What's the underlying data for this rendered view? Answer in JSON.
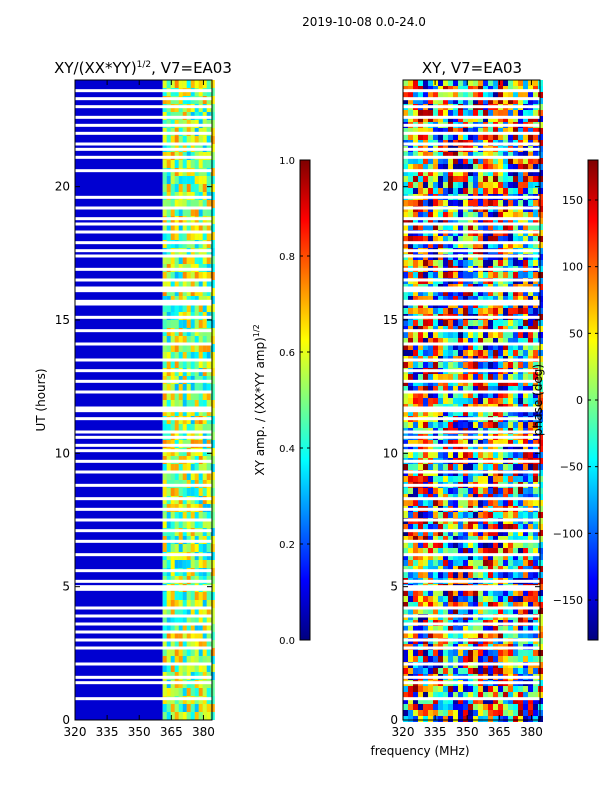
{
  "figure": {
    "suptitle": "2019-10-08 0.0-24.0",
    "shared_xlabel": "frequency (MHz)",
    "jet_stops": [
      "#00007f",
      "#0000ff",
      "#007fff",
      "#00ffff",
      "#7fff7f",
      "#ffff00",
      "#ff7f00",
      "#ff0000",
      "#7f0000"
    ],
    "row_gaps_ut": [
      0.8,
      1.4,
      1.6,
      2.1,
      2.7,
      3.0,
      3.3,
      3.6,
      3.9,
      4.2,
      4.9,
      5.0,
      5.2,
      5.6,
      6.2,
      6.7,
      7.1,
      7.5,
      7.9,
      8.3,
      8.8,
      9.3,
      9.7,
      10.1,
      10.3,
      10.6,
      10.8,
      11.3,
      11.6,
      11.7,
      12.3,
      12.7,
      13.1,
      13.5,
      14.1,
      14.6,
      15.1,
      15.6,
      15.7,
      16.1,
      16.2,
      16.5,
      16.9,
      17.4,
      17.6,
      17.9,
      18.3,
      18.6,
      18.8,
      19.2,
      19.6,
      20.6,
      21.1,
      21.4,
      21.6,
      22.0,
      22.3,
      22.6,
      23.0,
      23.3,
      23.6
    ]
  },
  "chart_data": [
    {
      "type": "heatmap",
      "title": "XY/(XX*YY)",
      "title_superscript": "1/2",
      "title_suffix": ", V7=EA03",
      "xlabel": "",
      "ylabel": "UT (hours)",
      "xlim": [
        320,
        384
      ],
      "ylim": [
        0,
        24
      ],
      "xticks": [
        320,
        335,
        350,
        365,
        380
      ],
      "yticks": [
        0,
        5,
        10,
        15,
        20
      ],
      "quantity": "normalized XY amplitude",
      "bands": [
        {
          "x_range": [
            320,
            361
          ],
          "value": 0.08
        },
        {
          "x_range": [
            361,
            384
          ],
          "value": 0.5
        }
      ],
      "colorbar": {
        "label": "XY amp. / (XX*YY amp)",
        "label_superscript": "1/2",
        "range": [
          0.0,
          1.0
        ],
        "ticks": [
          "0.0",
          "0.2",
          "0.4",
          "0.6",
          "0.8",
          "1.0"
        ],
        "tick_values": [
          0.0,
          0.2,
          0.4,
          0.6,
          0.8,
          1.0
        ]
      }
    },
    {
      "type": "heatmap",
      "title": "XY, V7=EA03",
      "xlabel": "frequency (MHz)",
      "ylabel": "",
      "xlim": [
        320,
        384
      ],
      "ylim": [
        0,
        24
      ],
      "xticks": [
        320,
        335,
        350,
        365,
        380
      ],
      "yticks": [
        0,
        5,
        10,
        15,
        20
      ],
      "quantity": "XY phase (deg), full range",
      "value_range": [
        -180,
        180
      ],
      "colorbar": {
        "label": "phase (deg)",
        "range": [
          -180,
          180
        ],
        "ticks": [
          "−150",
          "−100",
          "−50",
          "0",
          "50",
          "100",
          "150"
        ],
        "tick_values": [
          -150,
          -100,
          -50,
          0,
          50,
          100,
          150
        ]
      }
    }
  ]
}
